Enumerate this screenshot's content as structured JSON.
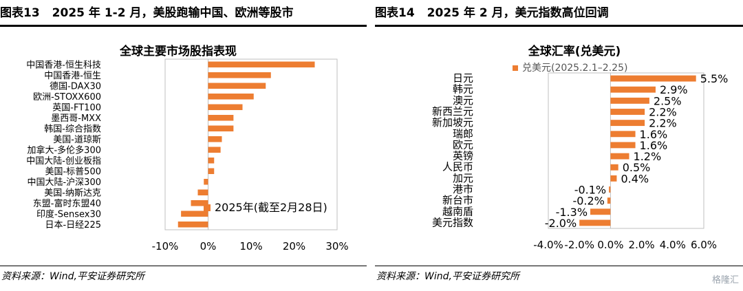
{
  "panel_left": {
    "number": "图表13",
    "title": "2025 年 1-2 月，美股跑输中国、欧洲等股市",
    "source": "资料来源：Wind,平安证券研究所"
  },
  "panel_right": {
    "number": "图表14",
    "title": "2025 年 2 月，美元指数高位回调",
    "source": "资料来源：Wind,平安证券研究所"
  },
  "watermark": "格隆汇",
  "colors": {
    "bar": "#ED7D31",
    "axis": "#bfbfbf"
  },
  "chart_data": [
    {
      "type": "bar",
      "orientation": "horizontal",
      "title": "全球主要市场股指表现",
      "legend": {
        "label": "2025年(截至2月28日)",
        "position": "bottom-right"
      },
      "categories": [
        "中国香港-恒生科技",
        "中国香港-恒生",
        "德国-DAX30",
        "欧洲-STOXX600",
        "英国-FT100",
        "墨西哥-MXX",
        "韩国-综合指数",
        "美国-道琼斯",
        "加拿大-多伦多300",
        "中国大陆-创业板指",
        "美国-标普500",
        "中国大陆-沪深300",
        "美国-纳斯达克",
        "东盟-富时东盟40",
        "印度-Sensex30",
        "日本-日经225"
      ],
      "values": [
        24.8,
        14.6,
        13.4,
        10.6,
        8.0,
        5.9,
        5.9,
        3.2,
        2.9,
        1.4,
        1.4,
        -1.0,
        -2.4,
        -4.0,
        -6.3,
        -7.0
      ],
      "xlim": [
        -10,
        30
      ],
      "xticks": [
        "-10%",
        "0%",
        "10%",
        "20%",
        "30%"
      ],
      "xtick_values": [
        -10,
        0,
        10,
        20,
        30
      ],
      "grid": false
    },
    {
      "type": "bar",
      "orientation": "horizontal",
      "title": "全球汇率(兑美元)",
      "legend": {
        "label": "兑美元(2025.2.1–2.25)",
        "position": "top-left"
      },
      "categories": [
        "日元",
        "韩元",
        "澳元",
        "新西兰元",
        "新加坡元",
        "瑞郎",
        "欧元",
        "英镑",
        "人民币",
        "加元",
        "港市",
        "新台市",
        "越南盾",
        "美元指数"
      ],
      "values": [
        5.5,
        2.9,
        2.5,
        2.2,
        2.2,
        1.6,
        1.6,
        1.2,
        0.5,
        0.4,
        -0.1,
        -0.2,
        -1.3,
        -2.0
      ],
      "data_labels": [
        "5.5%",
        "2.9%",
        "2.5%",
        "2.2%",
        "2.2%",
        "1.6%",
        "1.6%",
        "1.2%",
        "0.5%",
        "0.4%",
        "-0.1%",
        "-0.2%",
        "-1.3%",
        "-2.0%"
      ],
      "xlim": [
        -4,
        6
      ],
      "xticks": [
        "-4.0%",
        "-2.0%",
        "0.0%",
        "2.0%",
        "4.0%",
        "6.0%"
      ],
      "xtick_values": [
        -4,
        -2,
        0,
        2,
        4,
        6
      ],
      "grid": false
    }
  ]
}
